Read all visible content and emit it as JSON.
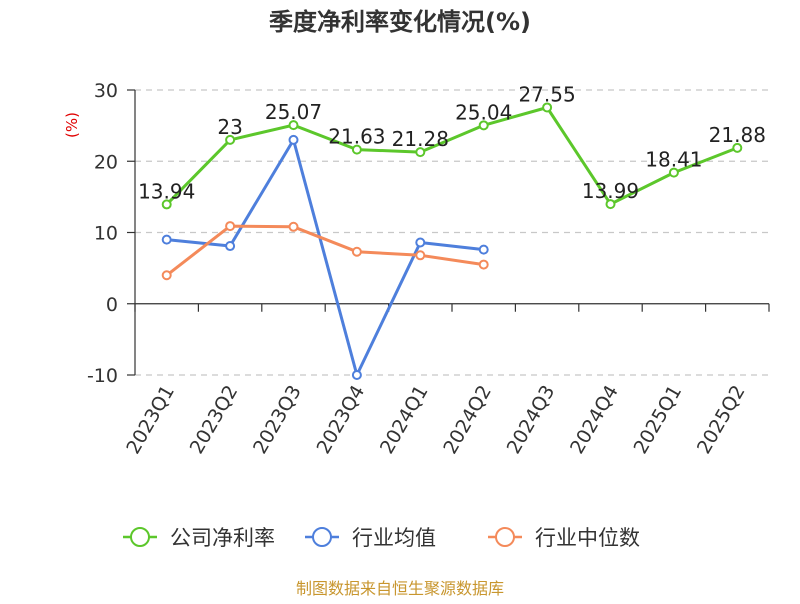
{
  "chart_data": {
    "type": "line",
    "title": "季度净利率变化情况(%)",
    "ylabel": "(%)",
    "xlabel": "",
    "ylim": [
      -10,
      30
    ],
    "yticks": [
      -10,
      0,
      10,
      20,
      30
    ],
    "categories": [
      "2023Q1",
      "2023Q2",
      "2023Q3",
      "2023Q4",
      "2024Q1",
      "2024Q2",
      "2024Q3",
      "2024Q4",
      "2025Q1",
      "2025Q2"
    ],
    "grid": true,
    "legend_position": "bottom",
    "series": [
      {
        "name": "公司净利率",
        "color": "#5cc72b",
        "show_labels": true,
        "values": [
          13.94,
          23,
          25.07,
          21.63,
          21.28,
          25.04,
          27.55,
          13.99,
          18.41,
          21.88
        ]
      },
      {
        "name": "行业均值",
        "color": "#4e7fdc",
        "show_labels": false,
        "values": [
          9.0,
          8.1,
          23.0,
          -10.0,
          8.6,
          7.6,
          null,
          null,
          null,
          null
        ]
      },
      {
        "name": "行业中位数",
        "color": "#f48a5a",
        "show_labels": false,
        "values": [
          4.0,
          10.9,
          10.8,
          7.3,
          6.8,
          5.5,
          null,
          null,
          null,
          null
        ]
      }
    ]
  },
  "footer": {
    "source": "制图数据来自恒生聚源数据库"
  },
  "colors": {
    "ylabel": "#e00000",
    "footer": "#c8962e",
    "grid": "#c8c8c8",
    "axis": "#333333"
  }
}
